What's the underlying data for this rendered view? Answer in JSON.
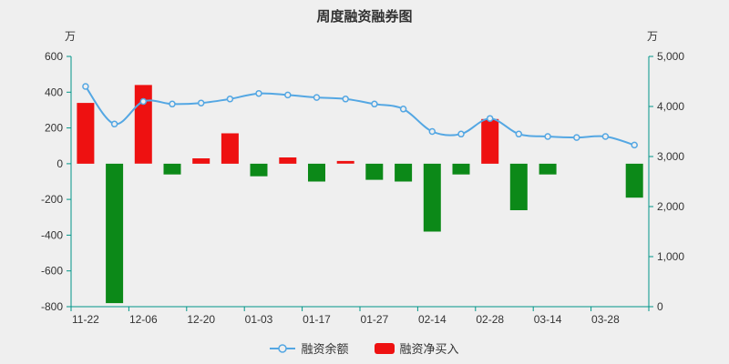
{
  "title": "周度融资融券图",
  "left_axis": {
    "unit": "万",
    "tick_labels": [
      "600",
      "400",
      "200",
      "0",
      "-200",
      "-400",
      "-600",
      "-800"
    ],
    "min": -800,
    "max": 600
  },
  "right_axis": {
    "unit": "万",
    "tick_labels": [
      "5,000",
      "4,000",
      "3,000",
      "2,000",
      "1,000",
      "0"
    ],
    "min": 0,
    "max": 5000
  },
  "legend": {
    "items": [
      {
        "label": "融资余额",
        "type": "line",
        "color": "#54a7e3"
      },
      {
        "label": "融资净买入",
        "type": "bar",
        "color": "#ee1111"
      }
    ]
  },
  "colors": {
    "background": "#efefef",
    "axis": "#009688",
    "text": "#333333",
    "bar_positive": "#ee1111",
    "bar_negative": "#0c8918",
    "line": "#54a7e3"
  },
  "chart_data": {
    "type": "combo",
    "title": "周度融资融券图",
    "x_tick_labels": [
      "11-22",
      "12-06",
      "12-20",
      "01-03",
      "01-17",
      "01-27",
      "02-14",
      "02-28",
      "03-14",
      "03-28"
    ],
    "x_label_interval": 2,
    "num_points": 20,
    "left_axis_range": [
      -800,
      600
    ],
    "right_axis_range": [
      0,
      5000
    ],
    "grid": false,
    "legend_position": "bottom",
    "series": [
      {
        "name": "融资净买入",
        "type": "bar",
        "axis": "left",
        "values": [
          340,
          -780,
          440,
          -60,
          30,
          170,
          -70,
          35,
          -100,
          15,
          -90,
          -100,
          -380,
          -60,
          250,
          -260,
          -60,
          0,
          0,
          -190
        ]
      },
      {
        "name": "融资余额",
        "type": "line",
        "axis": "right",
        "values": [
          4400,
          3650,
          4100,
          4050,
          4070,
          4150,
          4260,
          4230,
          4180,
          4150,
          4050,
          3950,
          3500,
          3450,
          3760,
          3450,
          3400,
          3380,
          3400,
          3230
        ]
      }
    ]
  }
}
